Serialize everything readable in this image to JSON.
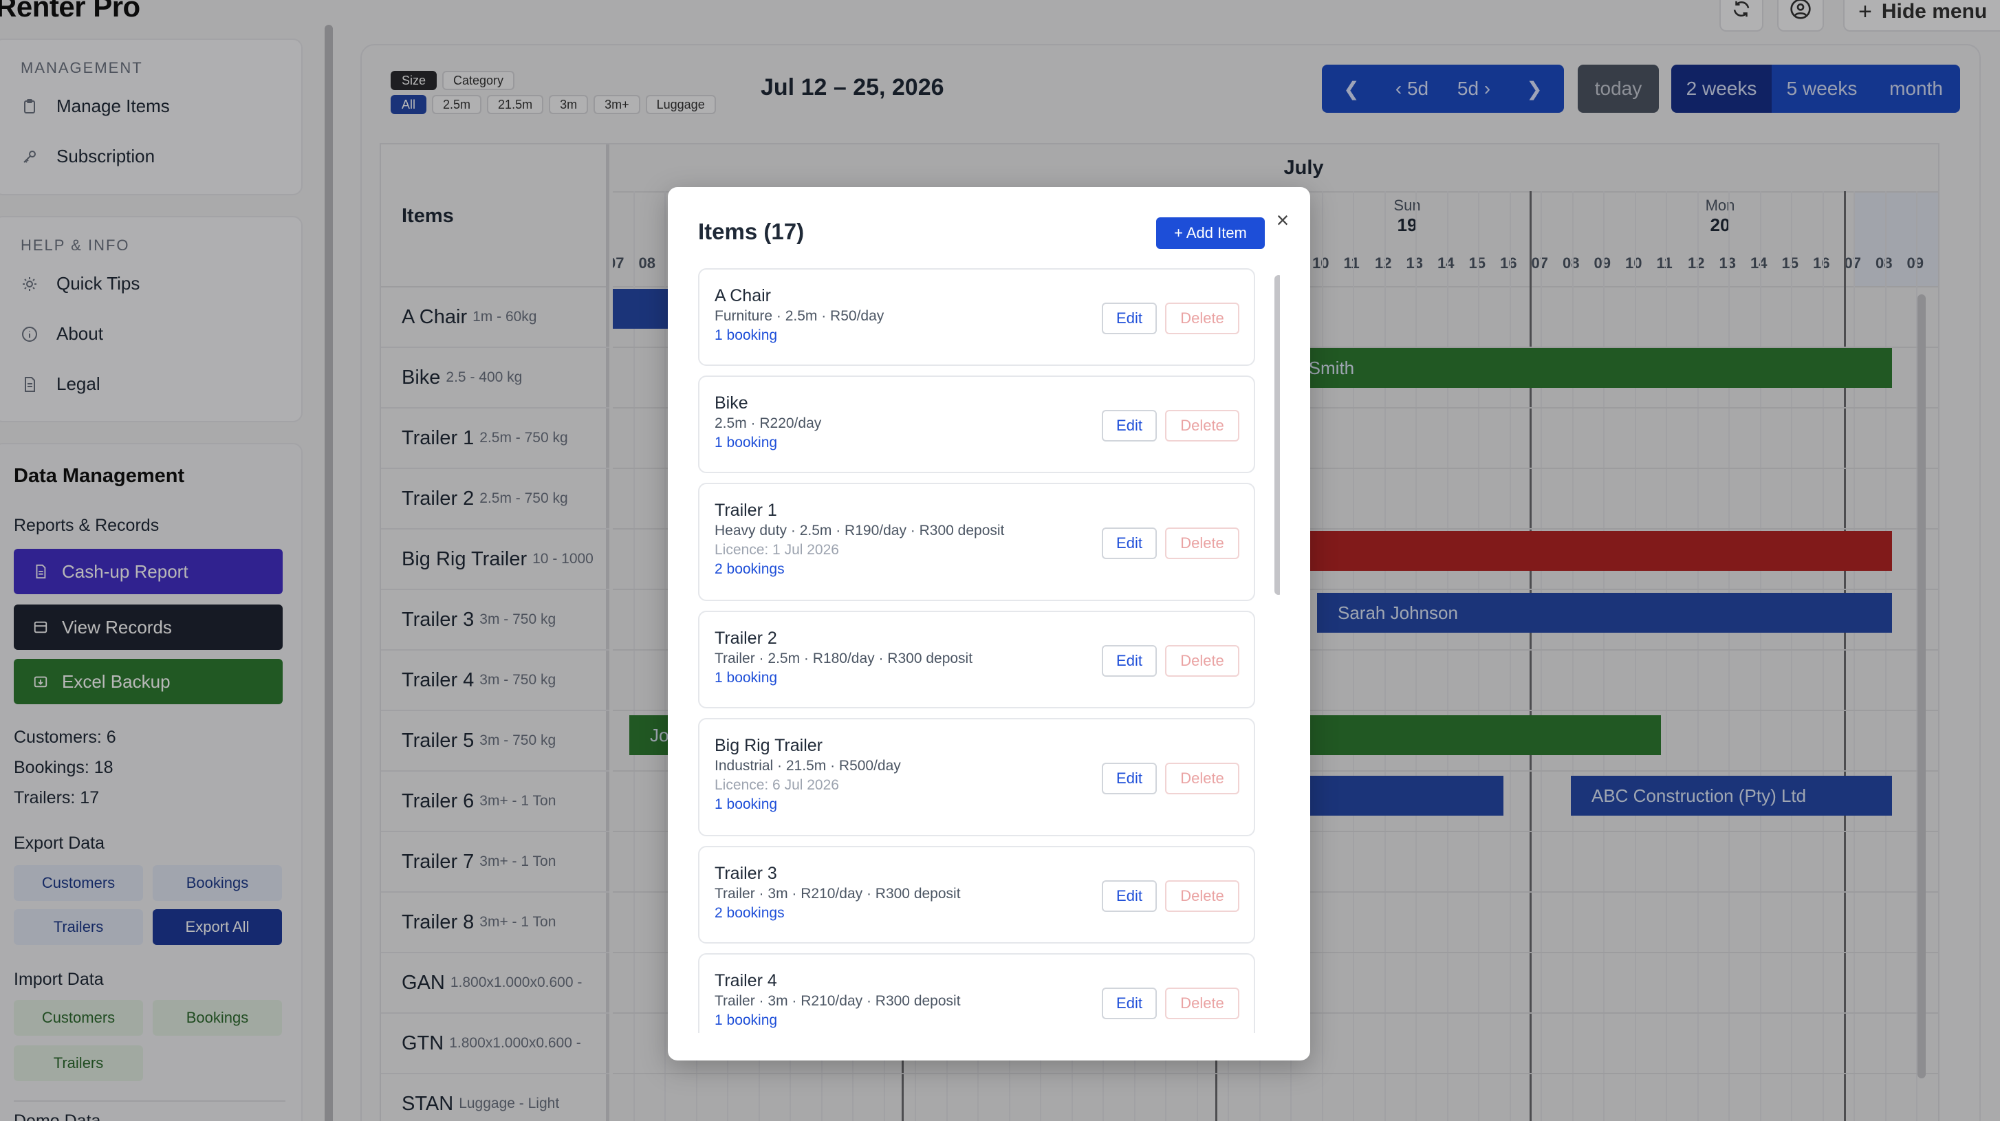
{
  "app": {
    "title": "Renter Pro"
  },
  "sidebar": {
    "management_heading": "MANAGEMENT",
    "management_items": [
      {
        "label": "Manage Items",
        "icon": "clipboard-icon"
      },
      {
        "label": "Subscription",
        "icon": "key-icon"
      }
    ],
    "help_heading": "HELP & INFO",
    "help_items": [
      {
        "label": "Quick Tips",
        "icon": "lightbulb-icon"
      },
      {
        "label": "About",
        "icon": "info-icon"
      },
      {
        "label": "Legal",
        "icon": "document-icon"
      }
    ],
    "data_management": {
      "title": "Data Management",
      "reports_label": "Reports & Records",
      "cashup_label": "Cash-up Report",
      "view_records_label": "View Records",
      "excel_backup_label": "Excel Backup",
      "stats": {
        "customers": "Customers: 6",
        "bookings": "Bookings: 18",
        "trailers": "Trailers: 17"
      },
      "export_label": "Export Data",
      "export_buttons": [
        "Customers",
        "Bookings",
        "Trailers",
        "Export All"
      ],
      "import_label": "Import Data",
      "import_buttons": [
        "Customers",
        "Bookings",
        "Trailers"
      ],
      "truncated_label": "Demo Data"
    },
    "colors": {
      "cashup": "#4330c7",
      "view_records": "#1f2432",
      "excel_backup": "#2f7a31"
    }
  },
  "topbar": {
    "hide_menu_label": "Hide menu"
  },
  "filters": {
    "groups": [
      "Size",
      "Category"
    ],
    "options": [
      "All",
      "2.5m",
      "21.5m",
      "3m",
      "3m+",
      "Luggage"
    ]
  },
  "calendar": {
    "date_range": "Jul 12 – 25, 2026",
    "nav": {
      "prev5": "‹ 5d",
      "next5": "5d ›",
      "today": "today"
    },
    "views": [
      "2 weeks",
      "5 weeks",
      "month"
    ],
    "month": "July",
    "items_header": "Items",
    "rows": [
      {
        "name": "A Chair",
        "desc": "1m - 60kg"
      },
      {
        "name": "Bike",
        "desc": "2.5 - 400 kg"
      },
      {
        "name": "Trailer 1",
        "desc": "2.5m - 750 kg"
      },
      {
        "name": "Trailer 2",
        "desc": "2.5m - 750 kg"
      },
      {
        "name": "Big Rig Trailer",
        "desc": "10 - 1000"
      },
      {
        "name": "Trailer 3",
        "desc": "3m - 750 kg"
      },
      {
        "name": "Trailer 4",
        "desc": "3m - 750 kg"
      },
      {
        "name": "Trailer 5",
        "desc": "3m - 750 kg"
      },
      {
        "name": "Trailer 6",
        "desc": "3m+ - 1 Ton"
      },
      {
        "name": "Trailer 7",
        "desc": "3m+ - 1 Ton"
      },
      {
        "name": "Trailer 8",
        "desc": "3m+ - 1 Ton"
      },
      {
        "name": "GAN",
        "desc": "1.800x1.000x0.600 -"
      },
      {
        "name": "GTN",
        "desc": "1.800x1.000x0.600 -"
      },
      {
        "name": "STAN",
        "desc": "Luggage - Light"
      }
    ],
    "days": [
      {
        "weekday": "Sun",
        "date": "19"
      },
      {
        "weekday": "Mon",
        "date": "20"
      }
    ],
    "hours_left": [
      "07",
      "08"
    ],
    "hours_right": [
      "10",
      "11",
      "12",
      "13",
      "14",
      "15",
      "16",
      "07",
      "08",
      "09",
      "10",
      "11",
      "12",
      "13",
      "14",
      "15",
      "16",
      "07",
      "08",
      "09"
    ],
    "bookings": [
      {
        "label": "",
        "color": "#2649a8"
      },
      {
        "label": "n Smith",
        "color": "#2f7a31"
      },
      {
        "label": "",
        "color": "#b32424"
      },
      {
        "label": "Sarah Johnson",
        "color": "#2649a8"
      },
      {
        "label": "Jo",
        "color": "#2f7a31"
      },
      {
        "label": "",
        "color": "#2f7a31"
      },
      {
        "label": "",
        "color": "#2649a8"
      },
      {
        "label": "ABC Construction (Pty) Ltd",
        "color": "#2649a8"
      }
    ]
  },
  "modal": {
    "title": "Items (17)",
    "add_label": "+ Add Item",
    "close": "×",
    "edit_label": "Edit",
    "delete_label": "Delete",
    "items": [
      {
        "name": "A Chair",
        "meta": "Furniture · 2.5m · R50/day",
        "licence": "",
        "bookings": "1 booking"
      },
      {
        "name": "Bike",
        "meta": "2.5m · R220/day",
        "licence": "",
        "bookings": "1 booking"
      },
      {
        "name": "Trailer 1",
        "meta": "Heavy duty · 2.5m · R190/day · R300 deposit",
        "licence": "Licence: 1 Jul 2026",
        "bookings": "2 bookings"
      },
      {
        "name": "Trailer 2",
        "meta": "Trailer · 2.5m · R180/day · R300 deposit",
        "licence": "",
        "bookings": "1 booking"
      },
      {
        "name": "Big Rig Trailer",
        "meta": "Industrial · 21.5m · R500/day",
        "licence": "Licence: 6 Jul 2026",
        "bookings": "1 booking"
      },
      {
        "name": "Trailer 3",
        "meta": "Trailer · 3m · R210/day · R300 deposit",
        "licence": "",
        "bookings": "2 bookings"
      },
      {
        "name": "Trailer 4",
        "meta": "Trailer · 3m · R210/day · R300 deposit",
        "licence": "",
        "bookings": "1 booking"
      }
    ]
  }
}
